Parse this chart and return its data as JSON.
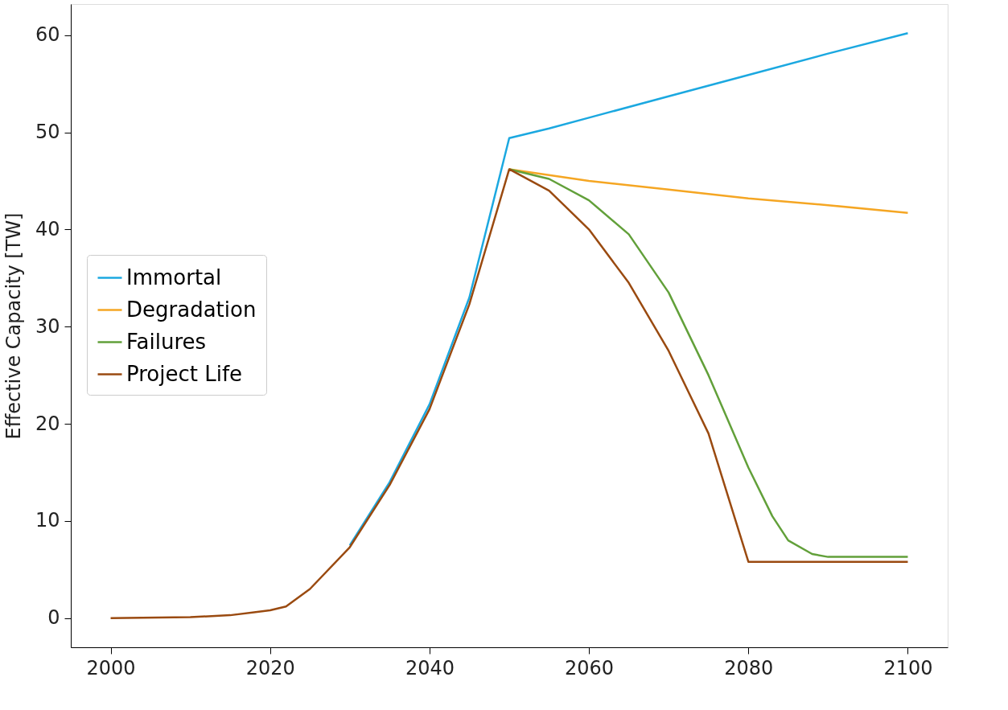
{
  "chart_data": {
    "type": "line",
    "ylabel": "Effective Capacity [TW]",
    "xlim": [
      1995,
      2105
    ],
    "xticks": [
      2000,
      2020,
      2040,
      2060,
      2080,
      2100
    ],
    "ylim": [
      -3,
      63.2
    ],
    "yticks": [
      0,
      10,
      20,
      30,
      40,
      50,
      60
    ],
    "grid": false,
    "legend": "left",
    "marker": "none",
    "line_style": "solid",
    "series": [
      {
        "name": "Immortal",
        "color": "#1ba8e0",
        "x": [
          2030,
          2035,
          2040,
          2045,
          2050,
          2055,
          2060,
          2070,
          2080,
          2090,
          2100
        ],
        "values": [
          7.5,
          14,
          22,
          33,
          49.4,
          50.4,
          51.5,
          53.7,
          55.9,
          58.1,
          60.2
        ]
      },
      {
        "name": "Degradation",
        "color": "#f5a623",
        "x": [
          2050,
          2060,
          2070,
          2080,
          2090,
          2100
        ],
        "values": [
          46.2,
          45.0,
          44.1,
          43.2,
          42.5,
          41.7
        ]
      },
      {
        "name": "Failures",
        "color": "#62a03a",
        "x": [
          2050,
          2055,
          2060,
          2065,
          2070,
          2075,
          2080,
          2083,
          2085,
          2088,
          2090,
          2100
        ],
        "values": [
          46.2,
          45.2,
          43.0,
          39.5,
          33.5,
          25,
          15.5,
          10.5,
          8,
          6.6,
          6.3,
          6.3
        ]
      },
      {
        "name": "Project Life",
        "color": "#9a4a10",
        "x": [
          2000,
          2010,
          2015,
          2020,
          2022,
          2025,
          2030,
          2035,
          2040,
          2045,
          2050,
          2055,
          2060,
          2065,
          2070,
          2075,
          2080,
          2100
        ],
        "values": [
          0,
          0.1,
          0.3,
          0.8,
          1.2,
          3,
          7.3,
          13.7,
          21.5,
          32.3,
          46.2,
          44,
          40,
          34.5,
          27.5,
          19,
          5.8,
          5.8
        ]
      }
    ]
  }
}
